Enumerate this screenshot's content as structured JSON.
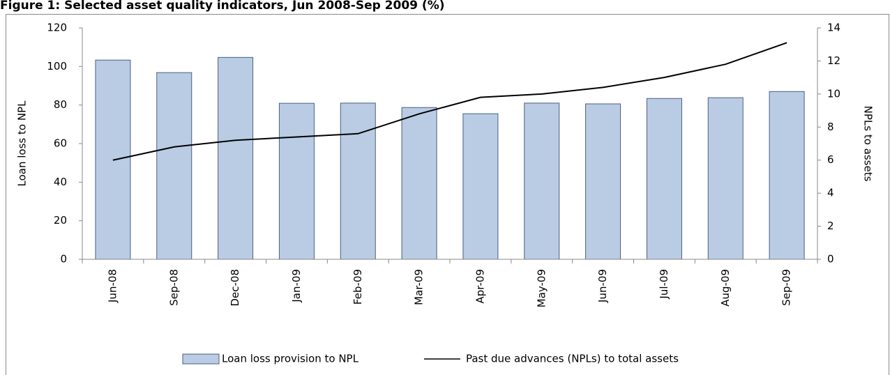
{
  "chart_data": {
    "type": "bar-line",
    "title": "Figure 1: Selected asset quality indicators, Jun 2008-Sep 2009 (%)",
    "y_label": "Loan loss to NPL",
    "y2_label": "NPLs to assets",
    "categories": [
      "Jun-08",
      "Sep-08",
      "Dec-08",
      "Jan-09",
      "Feb-09",
      "Mar-09",
      "Apr-09",
      "May-09",
      "Jun-09",
      "Jul-09",
      "Aug-09",
      "Sep-09"
    ],
    "series": [
      {
        "name": "Loan loss provision to NPL",
        "type": "bar",
        "color": "#b9cce4",
        "values": [
          103.3,
          96.8,
          104.7,
          80.9,
          81.0,
          78.7,
          75.5,
          81.0,
          80.6,
          83.4,
          83.8,
          87.0
        ]
      },
      {
        "name": "Past due advances (NPLs) to total assets",
        "type": "line",
        "color": "#000000",
        "axis": "y2",
        "values": [
          6.0,
          6.8,
          7.2,
          7.4,
          7.6,
          8.8,
          9.8,
          10.0,
          10.4,
          11.0,
          11.8,
          13.1
        ]
      }
    ],
    "ylim": [
      0,
      120
    ],
    "yticks": [
      0,
      20,
      40,
      60,
      80,
      100,
      120
    ],
    "y2lim": [
      0,
      14
    ],
    "y2ticks": [
      0,
      2,
      4,
      6,
      8,
      10,
      12,
      14
    ],
    "legend": "bottom"
  }
}
